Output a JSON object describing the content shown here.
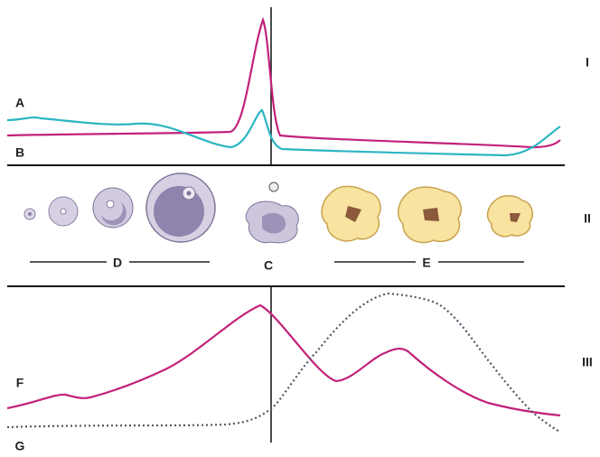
{
  "panel_1": {
    "numeral": "I",
    "curve_labels": [
      "A",
      "B"
    ]
  },
  "panel_2": {
    "numeral": "II",
    "stage_labels": [
      "D",
      "C",
      "E"
    ]
  },
  "panel_3": {
    "numeral": "III",
    "curve_labels": [
      "F",
      "G"
    ]
  }
}
